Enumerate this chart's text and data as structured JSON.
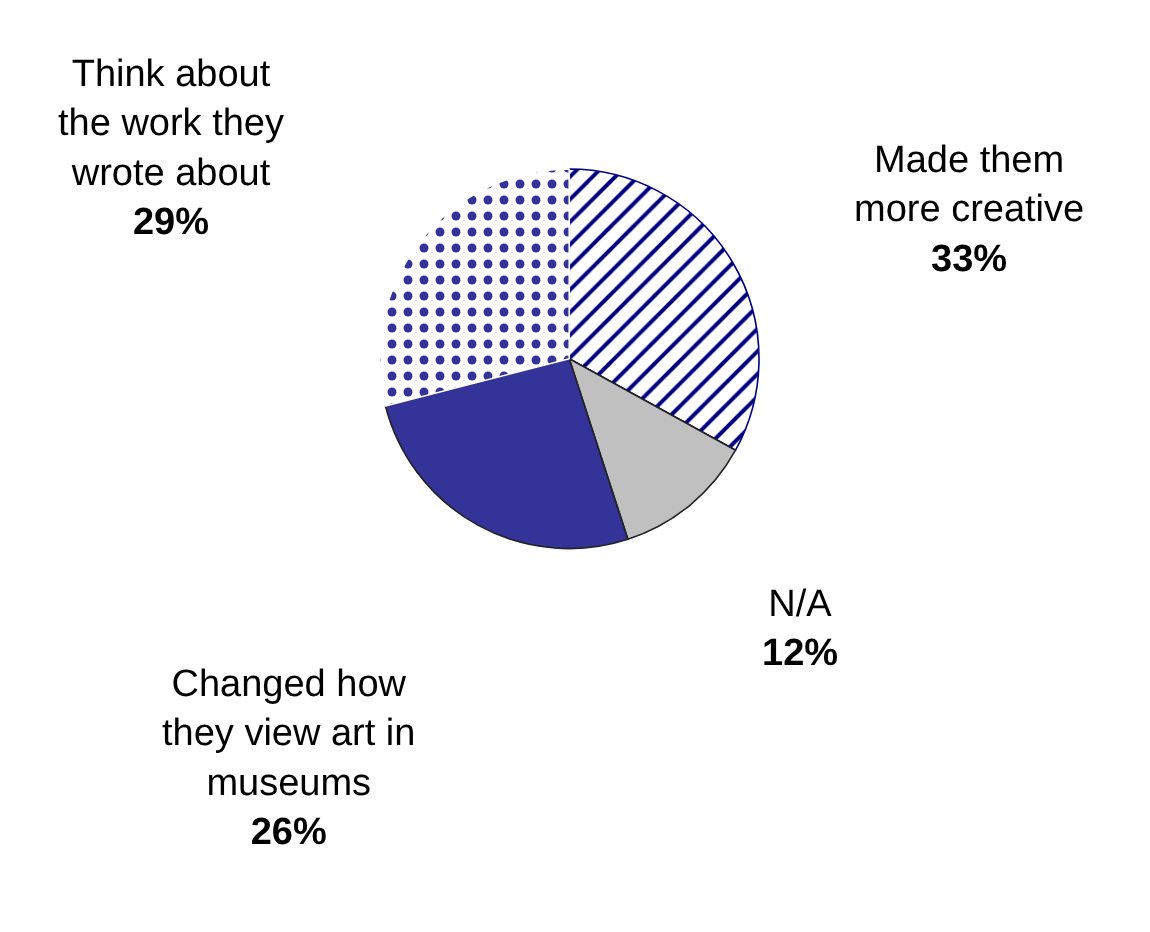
{
  "chart_data": {
    "type": "pie",
    "categories": [
      "Made them\nmore creative",
      "N/A",
      "Changed how\nthey view art in\nmuseums",
      "Think about\nthe work they\nwrote about"
    ],
    "values": [
      33,
      12,
      26,
      29
    ],
    "colors": [
      "#000080",
      "#c0c0c0",
      "#333399",
      "#ffffff"
    ],
    "value_labels": [
      "33%",
      "12%",
      "26%",
      "29%"
    ],
    "legend": false
  }
}
